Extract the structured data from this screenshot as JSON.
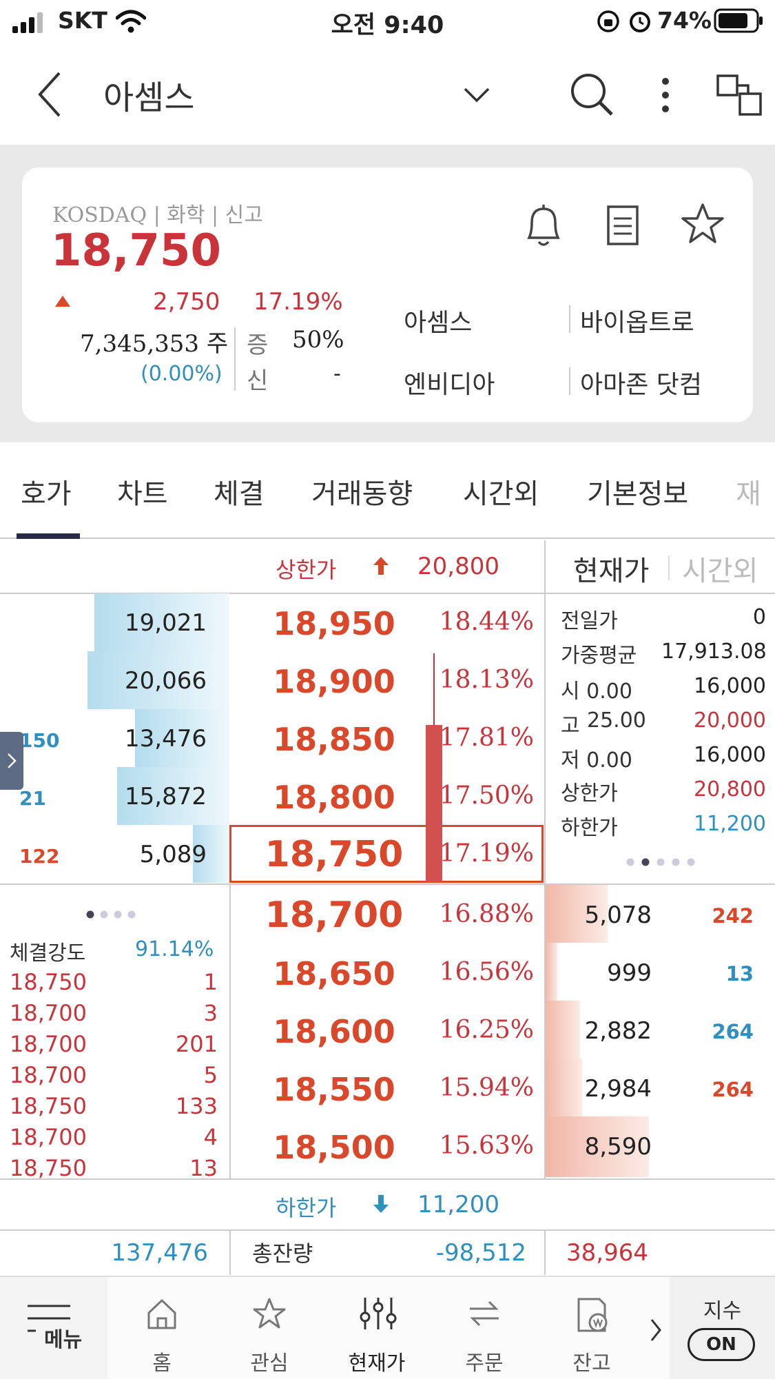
{
  "status_bar": {
    "carrier": "SKT",
    "time": "오전 9:40",
    "battery": "74%"
  },
  "header": {
    "title": "아셈스"
  },
  "summary": {
    "market_info": "KOSDAQ | 화학 | 신고",
    "price": "18,750",
    "change": "2,750",
    "change_pct": "17.19%",
    "volume": "7,345,353 주",
    "volume_pct": "(0.00%)",
    "margin_label": "증",
    "margin_value": "50%",
    "credit_label": "신",
    "credit_value": "-",
    "related": [
      "아셈스",
      "바이옵트로",
      "엔비디아",
      "아마존 닷컴"
    ]
  },
  "tabs": [
    "호가",
    "차트",
    "체결",
    "거래동향",
    "시간외",
    "기본정보",
    "재"
  ],
  "orderbook": {
    "upper_limit_label": "상한가",
    "upper_limit": "20,800",
    "lower_limit_label": "하한가",
    "lower_limit": "11,200",
    "price_toggle": "현재가",
    "after_hours_toggle": "시간외",
    "asks": [
      {
        "qty": "19,021",
        "price": "18,950",
        "pct": "18.44%",
        "change": "",
        "bar": 0.59
      },
      {
        "qty": "20,066",
        "price": "18,900",
        "pct": "18.13%",
        "change": "",
        "bar": 0.62
      },
      {
        "qty": "13,476",
        "price": "18,850",
        "pct": "17.81%",
        "change": "150",
        "bar": 0.41
      },
      {
        "qty": "15,872",
        "price": "18,800",
        "pct": "17.50%",
        "change": "21",
        "bar": 0.49
      },
      {
        "qty": "5,089",
        "price": "18,750",
        "pct": "17.19%",
        "change": "122",
        "bar": 0.16
      }
    ],
    "bids": [
      {
        "price": "18,700",
        "pct": "16.88%",
        "qty": "5,078",
        "change": "242",
        "bar": 0.27
      },
      {
        "price": "18,650",
        "pct": "16.56%",
        "qty": "999",
        "change": "13",
        "bar": 0.05
      },
      {
        "price": "18,600",
        "pct": "16.25%",
        "qty": "2,882",
        "change": "264",
        "bar": 0.15
      },
      {
        "price": "18,550",
        "pct": "15.94%",
        "qty": "2,984",
        "change": "264",
        "bar": 0.16
      },
      {
        "price": "18,500",
        "pct": "15.63%",
        "qty": "8,590",
        "change": "",
        "bar": 0.45
      }
    ],
    "info": [
      {
        "label": "전일가",
        "value": "0"
      },
      {
        "label": "가중평균",
        "value": "17,913.08"
      },
      {
        "label": "시 0.00",
        "value": "16,000"
      },
      {
        "label": "고",
        "label_pct": "25.00",
        "value": "20,000"
      },
      {
        "label": "저 0.00",
        "value": "16,000"
      },
      {
        "label": "상한가",
        "value": "20,800"
      },
      {
        "label": "하한가",
        "value": "11,200"
      }
    ],
    "strength_label": "체결강도",
    "strength_value": "91.14%",
    "trades": [
      {
        "price": "18,750",
        "qty": "1"
      },
      {
        "price": "18,700",
        "qty": "3"
      },
      {
        "price": "18,700",
        "qty": "201"
      },
      {
        "price": "18,700",
        "qty": "5"
      },
      {
        "price": "18,750",
        "qty": "133"
      },
      {
        "price": "18,700",
        "qty": "4"
      },
      {
        "price": "18,750",
        "qty": "13"
      }
    ],
    "totals": {
      "ask_total": "137,476",
      "label": "총잔량",
      "diff": "-98,512",
      "bid_total": "38,964"
    }
  },
  "bottom_nav": {
    "menu": "메뉴",
    "items": [
      "홈",
      "관심",
      "현재가",
      "주문",
      "잔고"
    ],
    "index_label": "지수",
    "index_toggle": "ON"
  },
  "colors": {
    "up_red": "#c9343a",
    "price_orange": "#d9482a",
    "down_blue": "#2f8fbe",
    "indicator": "#2a2a48"
  }
}
